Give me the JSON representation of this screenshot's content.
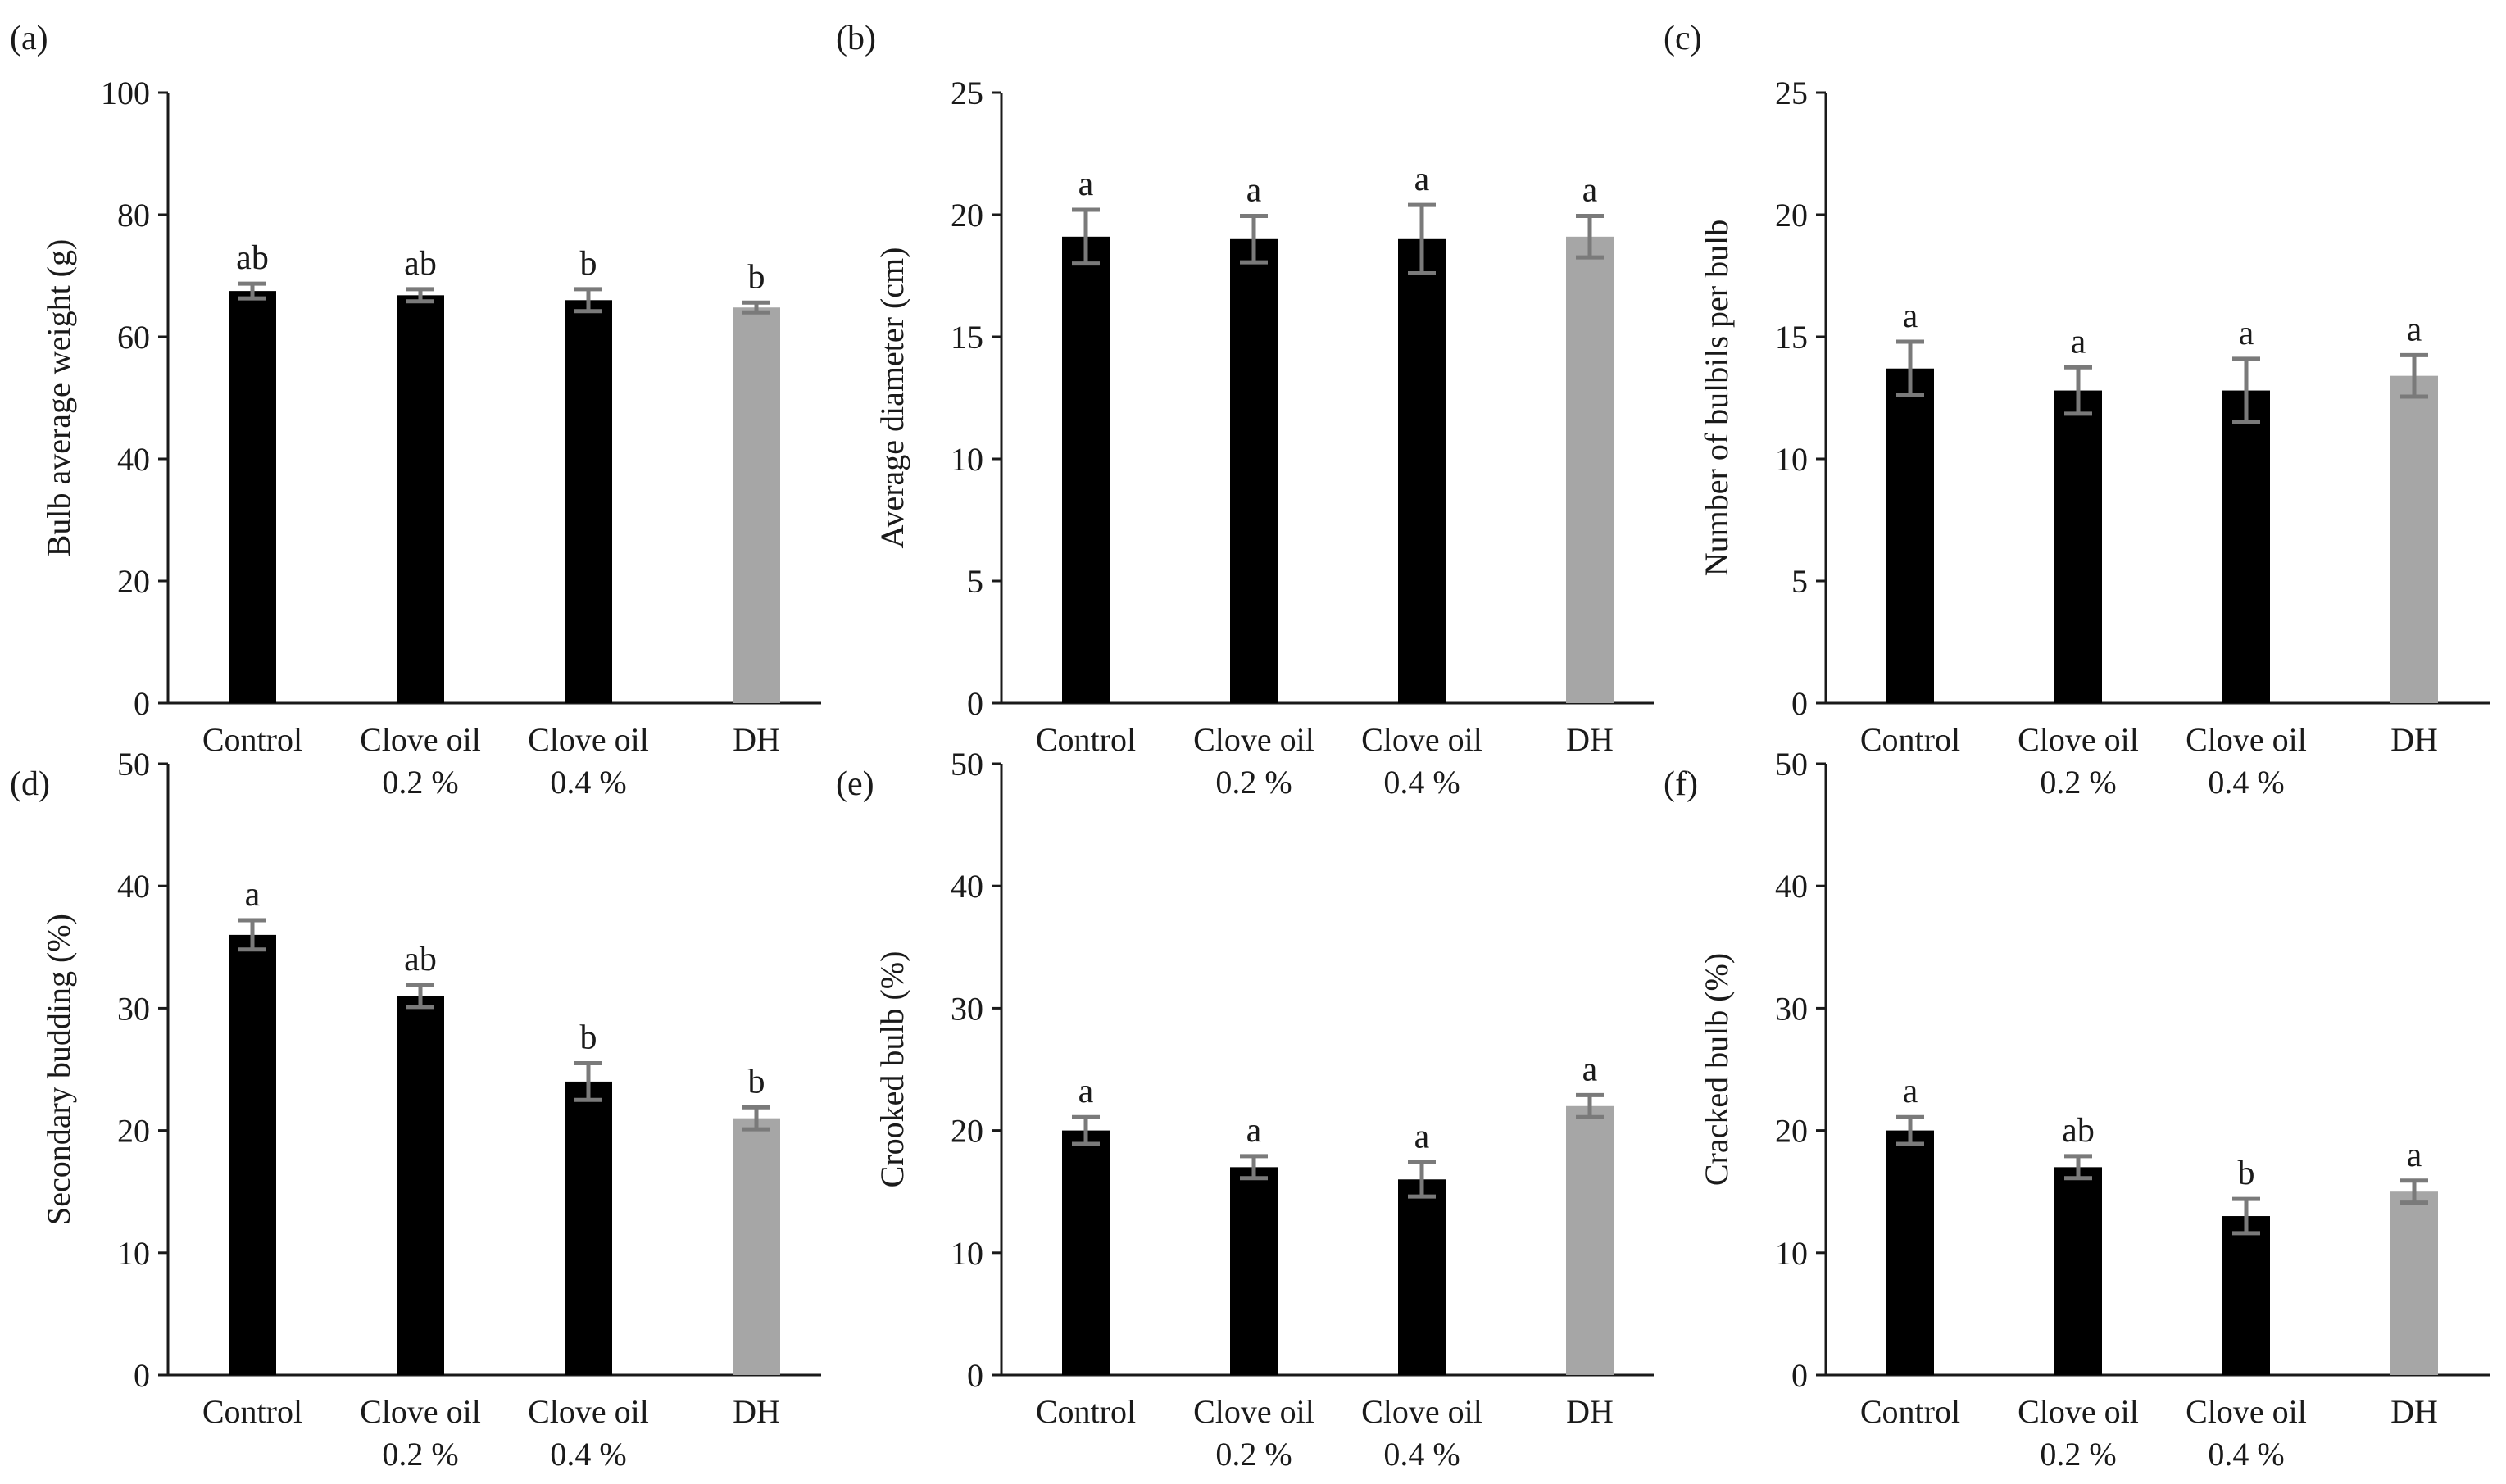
{
  "figure": {
    "description_ref": "six-panel bar chart figure"
  },
  "colors": {
    "treatment": "#000000",
    "dh": "#a6a6a6",
    "error_bar": "#7a7a7a",
    "axis": "#1a1a1a"
  },
  "chart_data": [
    {
      "panel": "(a)",
      "type": "bar",
      "categories": [
        [
          "Control"
        ],
        [
          "Clove oil",
          "0.2 %"
        ],
        [
          "Clove oil",
          "0.4 %"
        ],
        [
          "DH"
        ]
      ],
      "values": [
        67.5,
        66.8,
        66.0,
        64.8
      ],
      "errors": [
        1.2,
        1.0,
        1.8,
        0.8
      ],
      "letters": [
        "ab",
        "ab",
        "b",
        "b"
      ],
      "ylabel": "Bulb average weight (g)",
      "ylim": [
        0,
        100
      ],
      "yticks": [
        0,
        20,
        40,
        60,
        80,
        100
      ]
    },
    {
      "panel": "(b)",
      "type": "bar",
      "categories": [
        [
          "Control"
        ],
        [
          "Clove oil",
          "0.2 %"
        ],
        [
          "Clove oil",
          "0.4 %"
        ],
        [
          "DH"
        ]
      ],
      "values": [
        19.1,
        19.0,
        19.0,
        19.1
      ],
      "errors": [
        1.1,
        0.95,
        1.4,
        0.85
      ],
      "letters": [
        "a",
        "a",
        "a",
        "a"
      ],
      "ylabel": "Average diameter (cm)",
      "ylim": [
        0,
        25
      ],
      "yticks": [
        0,
        5,
        10,
        15,
        20,
        25
      ]
    },
    {
      "panel": "(c)",
      "type": "bar",
      "categories": [
        [
          "Control"
        ],
        [
          "Clove oil",
          "0.2 %"
        ],
        [
          "Clove oil",
          "0.4 %"
        ],
        [
          "DH"
        ]
      ],
      "values": [
        13.7,
        12.8,
        12.8,
        13.4
      ],
      "errors": [
        1.1,
        0.95,
        1.3,
        0.85
      ],
      "letters": [
        "a",
        "a",
        "a",
        "a"
      ],
      "ylabel": "Number of bulbils per bulb",
      "ylim": [
        0,
        25
      ],
      "yticks": [
        0,
        5,
        10,
        15,
        20,
        25
      ]
    },
    {
      "panel": "(d)",
      "type": "bar",
      "categories": [
        [
          "Control"
        ],
        [
          "Clove oil",
          "0.2 %"
        ],
        [
          "Clove oil",
          "0.4 %"
        ],
        [
          "DH"
        ]
      ],
      "values": [
        36.0,
        31.0,
        24.0,
        21.0
      ],
      "errors": [
        1.2,
        0.9,
        1.5,
        0.9
      ],
      "letters": [
        "a",
        "ab",
        "b",
        "b"
      ],
      "ylabel": "Secondary budding (%)",
      "ylim": [
        0,
        50
      ],
      "yticks": [
        0,
        10,
        20,
        30,
        40,
        50
      ]
    },
    {
      "panel": "(e)",
      "type": "bar",
      "categories": [
        [
          "Control"
        ],
        [
          "Clove oil",
          "0.2 %"
        ],
        [
          "Clove oil",
          "0.4 %"
        ],
        [
          "DH"
        ]
      ],
      "values": [
        20.0,
        17.0,
        16.0,
        22.0
      ],
      "errors": [
        1.1,
        0.9,
        1.4,
        0.9
      ],
      "letters": [
        "a",
        "a",
        "a",
        "a"
      ],
      "ylabel": "Crooked bulb (%)",
      "ylim": [
        0,
        50
      ],
      "yticks": [
        0,
        10,
        20,
        30,
        40,
        50
      ]
    },
    {
      "panel": "(f)",
      "type": "bar",
      "categories": [
        [
          "Control"
        ],
        [
          "Clove oil",
          "0.2 %"
        ],
        [
          "Clove oil",
          "0.4 %"
        ],
        [
          "DH"
        ]
      ],
      "values": [
        20.0,
        17.0,
        13.0,
        15.0
      ],
      "errors": [
        1.1,
        0.9,
        1.4,
        0.9
      ],
      "letters": [
        "a",
        "ab",
        "b",
        "a"
      ],
      "ylabel": "Cracked bulb (%)",
      "ylim": [
        0,
        50
      ],
      "yticks": [
        0,
        10,
        20,
        30,
        40,
        50
      ]
    }
  ]
}
